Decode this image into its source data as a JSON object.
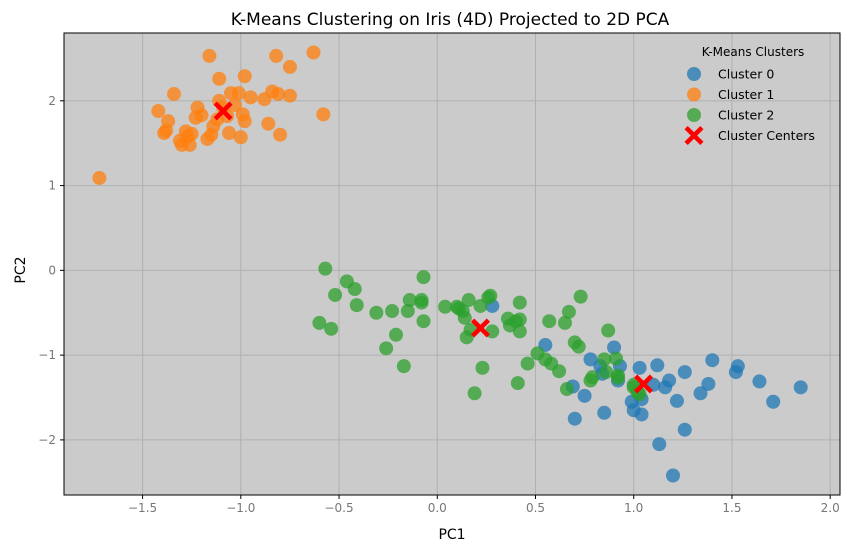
{
  "chart_data": {
    "type": "scatter",
    "title": "K-Means Clustering on Iris (4D) Projected to 2D PCA",
    "xlabel": "PC1",
    "ylabel": "PC2",
    "xlim": [
      -1.9,
      2.05
    ],
    "ylim": [
      -2.65,
      2.8
    ],
    "xticks": [
      -1.5,
      -1.0,
      -0.5,
      0.0,
      0.5,
      1.0,
      1.5,
      2.0
    ],
    "xtick_labels": [
      "−1.5",
      "−1.0",
      "−0.5",
      "0.0",
      "0.5",
      "1.0",
      "1.5",
      "2.0"
    ],
    "yticks": [
      -2,
      -1,
      0,
      1,
      2
    ],
    "ytick_labels": [
      "−2",
      "−1",
      "0",
      "1",
      "2"
    ],
    "grid": true,
    "background": "#cbcbcb",
    "legend": {
      "title": "K-Means Clusters",
      "placement": "top-right"
    },
    "series": [
      {
        "name": "Cluster 0",
        "color": "#1f77b4",
        "points": [
          [
            0.55,
            -0.88
          ],
          [
            0.69,
            -1.37
          ],
          [
            0.7,
            -1.75
          ],
          [
            0.75,
            -1.48
          ],
          [
            0.78,
            -1.05
          ],
          [
            0.83,
            -1.13
          ],
          [
            0.84,
            -1.22
          ],
          [
            0.85,
            -1.68
          ],
          [
            0.9,
            -0.91
          ],
          [
            0.93,
            -1.13
          ],
          [
            0.92,
            -1.3
          ],
          [
            0.99,
            -1.55
          ],
          [
            1.0,
            -1.65
          ],
          [
            1.03,
            -1.15
          ],
          [
            1.04,
            -1.52
          ],
          [
            1.04,
            -1.7
          ],
          [
            1.12,
            -1.12
          ],
          [
            1.13,
            -2.05
          ],
          [
            1.16,
            -1.38
          ],
          [
            1.18,
            -1.3
          ],
          [
            1.2,
            -2.42
          ],
          [
            1.22,
            -1.54
          ],
          [
            1.26,
            -1.2
          ],
          [
            1.26,
            -1.88
          ],
          [
            1.34,
            -1.45
          ],
          [
            1.38,
            -1.34
          ],
          [
            1.4,
            -1.06
          ],
          [
            1.52,
            -1.2
          ],
          [
            1.53,
            -1.13
          ],
          [
            1.64,
            -1.31
          ],
          [
            1.71,
            -1.55
          ],
          [
            1.85,
            -1.38
          ],
          [
            0.28,
            -0.42
          ],
          [
            1.1,
            -1.35
          ]
        ]
      },
      {
        "name": "Cluster 1",
        "color": "#ff7f0e",
        "points": [
          [
            -1.72,
            1.09
          ],
          [
            -1.42,
            1.88
          ],
          [
            -1.39,
            1.62
          ],
          [
            -1.38,
            1.65
          ],
          [
            -1.37,
            1.76
          ],
          [
            -1.34,
            2.08
          ],
          [
            -1.31,
            1.53
          ],
          [
            -1.3,
            1.48
          ],
          [
            -1.28,
            1.64
          ],
          [
            -1.27,
            1.58
          ],
          [
            -1.26,
            1.48
          ],
          [
            -1.25,
            1.61
          ],
          [
            -1.23,
            1.8
          ],
          [
            -1.22,
            1.92
          ],
          [
            -1.2,
            1.83
          ],
          [
            -1.17,
            1.55
          ],
          [
            -1.16,
            2.53
          ],
          [
            -1.15,
            1.6
          ],
          [
            -1.14,
            1.7
          ],
          [
            -1.12,
            1.78
          ],
          [
            -1.11,
            2.26
          ],
          [
            -1.11,
            2.0
          ],
          [
            -1.09,
            1.92
          ],
          [
            -1.07,
            1.82
          ],
          [
            -1.06,
            1.62
          ],
          [
            -1.05,
            2.09
          ],
          [
            -1.03,
            1.95
          ],
          [
            -1.01,
            2.09
          ],
          [
            -1.0,
            1.57
          ],
          [
            -0.99,
            1.84
          ],
          [
            -0.98,
            2.29
          ],
          [
            -0.98,
            1.76
          ],
          [
            -0.95,
            2.04
          ],
          [
            -0.88,
            2.02
          ],
          [
            -0.86,
            1.73
          ],
          [
            -0.84,
            2.11
          ],
          [
            -0.82,
            2.53
          ],
          [
            -0.81,
            2.08
          ],
          [
            -0.8,
            1.6
          ],
          [
            -0.75,
            2.4
          ],
          [
            -0.75,
            2.06
          ],
          [
            -0.63,
            2.57
          ],
          [
            -0.58,
            1.84
          ]
        ]
      },
      {
        "name": "Cluster 2",
        "color": "#2ca02c",
        "points": [
          [
            -0.6,
            -0.62
          ],
          [
            -0.57,
            0.02
          ],
          [
            -0.54,
            -0.69
          ],
          [
            -0.52,
            -0.29
          ],
          [
            -0.46,
            -0.13
          ],
          [
            -0.42,
            -0.22
          ],
          [
            -0.41,
            -0.41
          ],
          [
            -0.31,
            -0.5
          ],
          [
            -0.26,
            -0.92
          ],
          [
            -0.23,
            -0.48
          ],
          [
            -0.21,
            -0.76
          ],
          [
            -0.17,
            -1.13
          ],
          [
            -0.15,
            -0.48
          ],
          [
            -0.14,
            -0.35
          ],
          [
            -0.08,
            -0.38
          ],
          [
            -0.08,
            -0.35
          ],
          [
            -0.07,
            -0.6
          ],
          [
            -0.07,
            -0.08
          ],
          [
            0.04,
            -0.43
          ],
          [
            0.1,
            -0.43
          ],
          [
            0.11,
            -0.45
          ],
          [
            0.13,
            -0.48
          ],
          [
            0.14,
            -0.56
          ],
          [
            0.15,
            -0.79
          ],
          [
            0.16,
            -0.35
          ],
          [
            0.17,
            -0.7
          ],
          [
            0.19,
            -1.45
          ],
          [
            0.22,
            -0.42
          ],
          [
            0.23,
            -1.15
          ],
          [
            0.26,
            -0.32
          ],
          [
            0.27,
            -0.3
          ],
          [
            0.28,
            -0.72
          ],
          [
            0.36,
            -0.57
          ],
          [
            0.37,
            -0.65
          ],
          [
            0.4,
            -0.6
          ],
          [
            0.41,
            -1.33
          ],
          [
            0.42,
            -0.38
          ],
          [
            0.42,
            -0.58
          ],
          [
            0.42,
            -0.72
          ],
          [
            0.46,
            -1.1
          ],
          [
            0.51,
            -0.98
          ],
          [
            0.55,
            -1.05
          ],
          [
            0.57,
            -0.6
          ],
          [
            0.58,
            -1.1
          ],
          [
            0.62,
            -1.19
          ],
          [
            0.65,
            -0.62
          ],
          [
            0.66,
            -1.4
          ],
          [
            0.67,
            -0.49
          ],
          [
            0.7,
            -0.85
          ],
          [
            0.72,
            -0.9
          ],
          [
            0.73,
            -0.31
          ],
          [
            0.78,
            -1.3
          ],
          [
            0.79,
            -1.26
          ],
          [
            0.85,
            -1.05
          ],
          [
            0.87,
            -0.71
          ],
          [
            0.91,
            -1.04
          ],
          [
            0.92,
            -1.24
          ],
          [
            1.0,
            -1.35
          ],
          [
            1.02,
            -1.44
          ],
          [
            1.03,
            -1.46
          ],
          [
            0.86,
            -1.2
          ],
          [
            0.92,
            -1.27
          ],
          [
            1.0,
            -1.38
          ]
        ]
      }
    ],
    "centers": {
      "name": "Cluster Centers",
      "color": "#ff0000",
      "points": [
        [
          1.05,
          -1.34
        ],
        [
          -1.09,
          1.88
        ],
        [
          0.22,
          -0.68
        ]
      ]
    }
  }
}
